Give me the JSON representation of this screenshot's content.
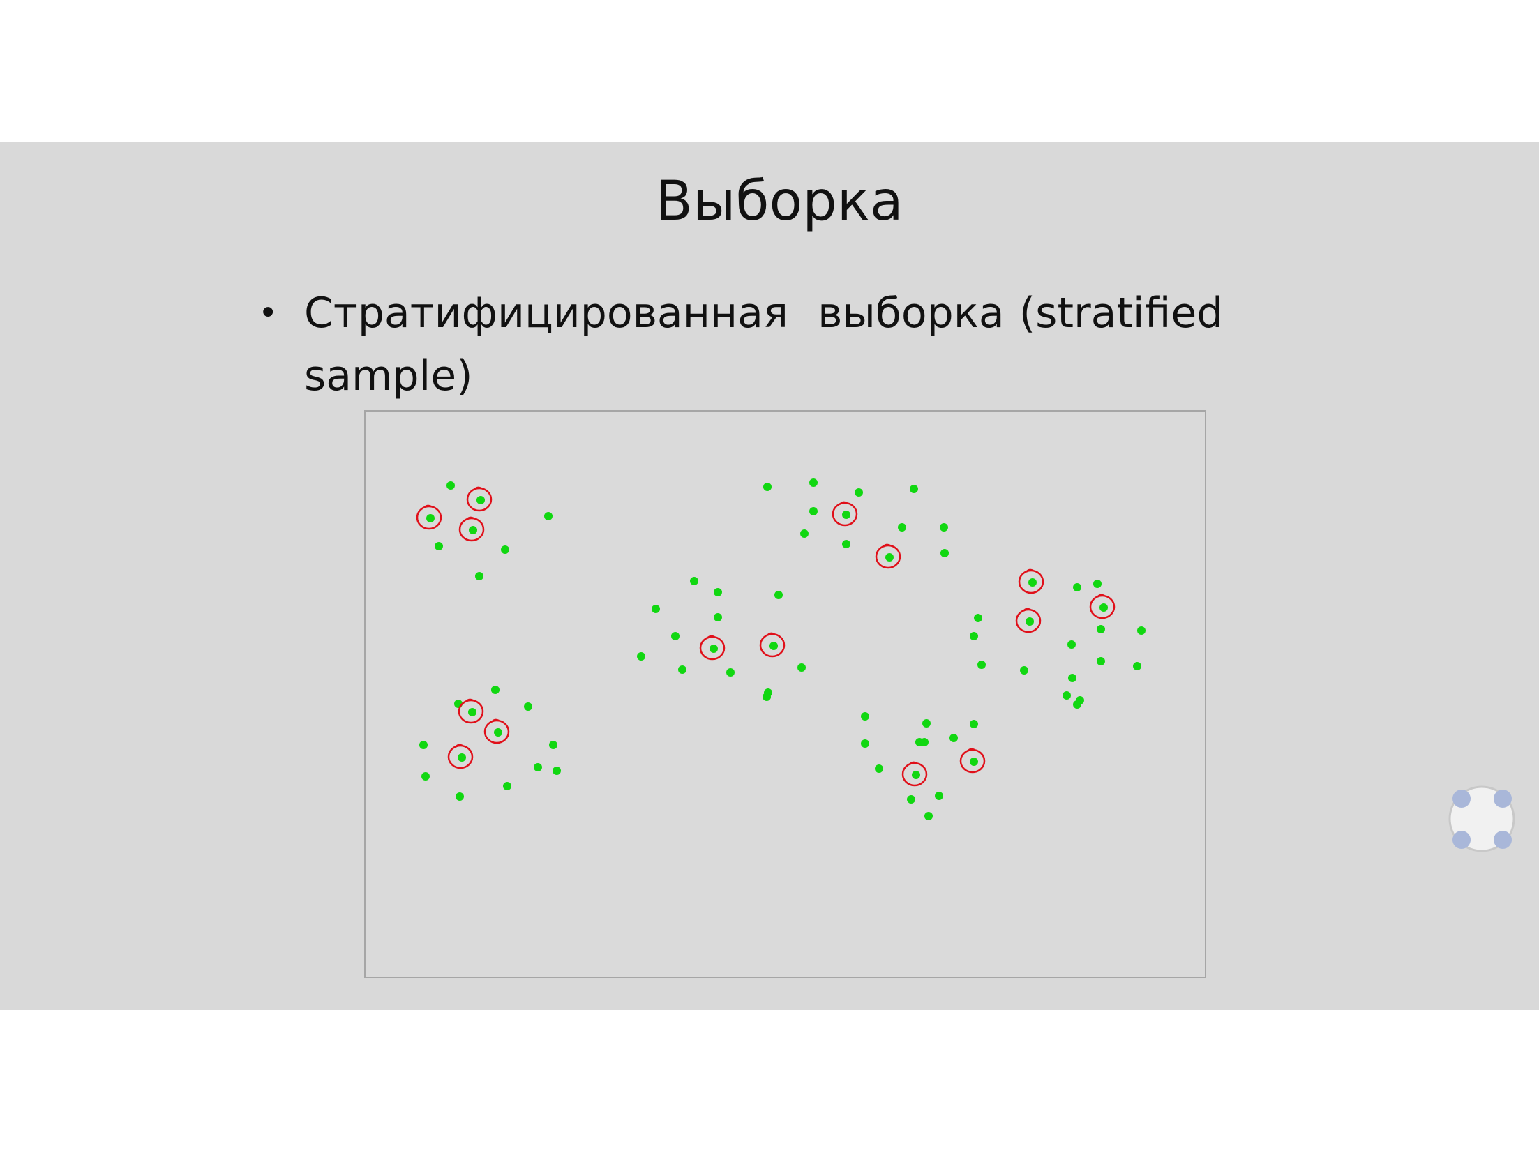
{
  "slide": {
    "title": "Выборка",
    "bullet_text": "Стратифицированная  выборка (stratified sample)"
  },
  "diagram": {
    "point_color": "#11d711",
    "circle_color": "#e0101a",
    "background_color": "#dadada",
    "border_color": "#a6a6a6"
  },
  "widgets": {
    "resize_icon": "fullscreen-handles-icon"
  }
}
